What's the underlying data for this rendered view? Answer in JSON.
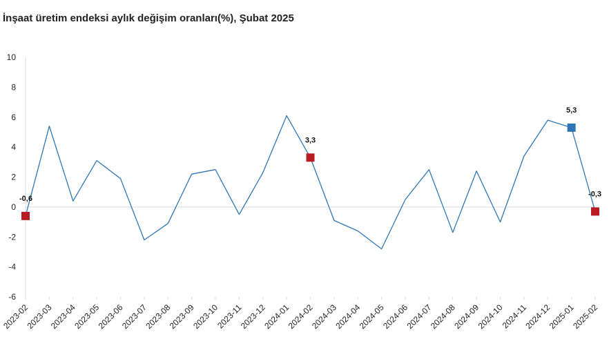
{
  "chart_data": {
    "type": "line",
    "title": "İnşaat üretim endeksi aylık değişim oranları(%), Şubat 2025",
    "xlabel": "",
    "ylabel": "",
    "ylim": [
      -6,
      10
    ],
    "yticks": [
      -6,
      -4,
      -2,
      0,
      2,
      4,
      6,
      8,
      10
    ],
    "grid": false,
    "legend": "none",
    "categories": [
      "2023-02",
      "2023-03",
      "2023-04",
      "2023-05",
      "2023-06",
      "2023-07",
      "2023-08",
      "2023-09",
      "2023-10",
      "2023-11",
      "2023-12",
      "2024-01",
      "2024-02",
      "2024-03",
      "2024-04",
      "2024-05",
      "2024-06",
      "2024-07",
      "2024-08",
      "2024-09",
      "2024-10",
      "2024-11",
      "2024-12",
      "2025-01",
      "2025-02"
    ],
    "series": [
      {
        "values": [
          -0.6,
          5.4,
          0.4,
          3.1,
          1.9,
          -2.2,
          -1.1,
          2.2,
          2.5,
          -0.5,
          2.3,
          6.1,
          3.3,
          -0.9,
          -1.6,
          -2.8,
          0.5,
          2.5,
          -1.7,
          2.4,
          -1.0,
          3.4,
          5.8,
          5.3,
          -0.3
        ],
        "color": "#2e75b6"
      }
    ],
    "markers": [
      {
        "index": 0,
        "label": "-0,6",
        "color": "#b81c22"
      },
      {
        "index": 12,
        "label": "3,3",
        "color": "#b81c22"
      },
      {
        "index": 23,
        "label": "5,3",
        "color": "#2e75b6"
      },
      {
        "index": 24,
        "label": "-0,3",
        "color": "#b81c22"
      }
    ]
  }
}
